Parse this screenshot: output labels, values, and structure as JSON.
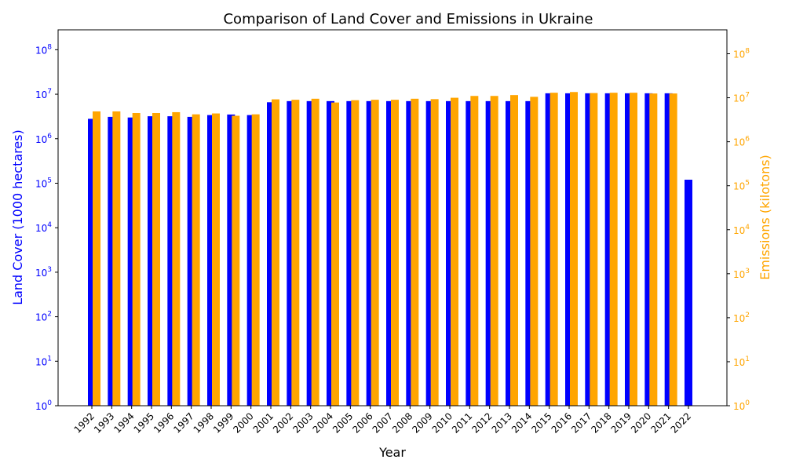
{
  "chart_data": {
    "type": "bar",
    "title": "Comparison of Land Cover and Emissions in Ukraine",
    "xlabel": "Year",
    "ylabel_left": "Land Cover (1000 hectares)",
    "ylabel_right": "Emissions (kilotons)",
    "y_scale": "log",
    "ylim_left": [
      1,
      280000000
    ],
    "ylim_right": [
      1,
      350000000
    ],
    "yticks": [
      "10^0",
      "10^1",
      "10^2",
      "10^3",
      "10^4",
      "10^5",
      "10^6",
      "10^7",
      "10^8"
    ],
    "categories": [
      "1992",
      "1993",
      "1994",
      "1995",
      "1996",
      "1997",
      "1998",
      "1999",
      "2000",
      "2001",
      "2002",
      "2003",
      "2004",
      "2005",
      "2006",
      "2007",
      "2008",
      "2009",
      "2010",
      "2011",
      "2012",
      "2013",
      "2014",
      "2015",
      "2016",
      "2017",
      "2018",
      "2019",
      "2020",
      "2021",
      "2022"
    ],
    "series": [
      {
        "axis": "left",
        "color": "#0000ff",
        "values": [
          2800000,
          3100000,
          3000000,
          3200000,
          3200000,
          3100000,
          3400000,
          3500000,
          3400000,
          6600000,
          7000000,
          7000000,
          7000000,
          7000000,
          7000000,
          7000000,
          7000000,
          7000000,
          7000000,
          7000000,
          7000000,
          7000000,
          7000000,
          10500000,
          10500000,
          10500000,
          10500000,
          10500000,
          10500000,
          10500000,
          120000
        ]
      },
      {
        "axis": "right",
        "color": "#ffa500",
        "values": [
          4900000,
          4900000,
          4500000,
          4500000,
          4700000,
          4200000,
          4400000,
          3900000,
          4200000,
          9200000,
          9000000,
          9500000,
          7800000,
          8800000,
          9000000,
          9000000,
          9500000,
          9300000,
          10000000,
          11000000,
          11000000,
          11500000,
          10500000,
          13000000,
          13500000,
          12800000,
          13000000,
          13000000,
          12500000,
          12500000,
          null
        ]
      }
    ],
    "colors": {
      "left_axis": "#0000ff",
      "right_axis": "#ffa500",
      "frame": "#000000"
    }
  }
}
